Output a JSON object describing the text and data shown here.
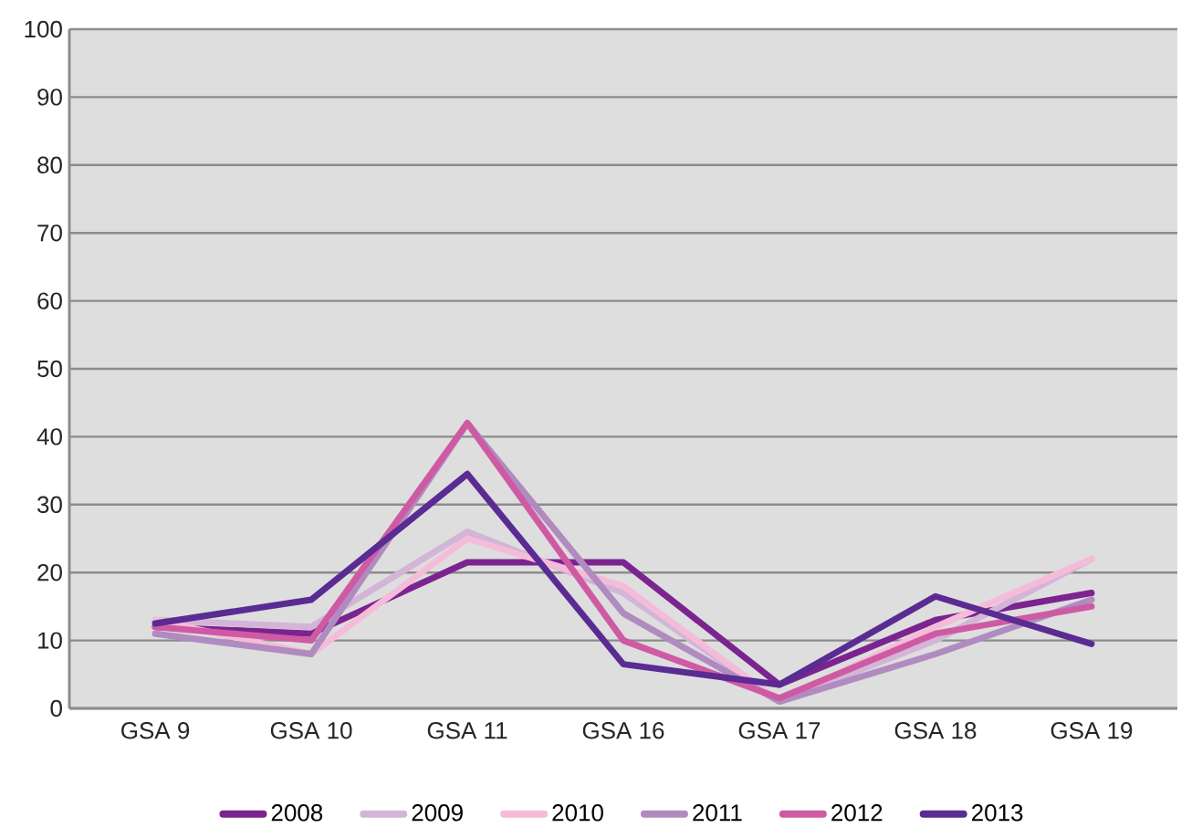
{
  "chart_data": {
    "type": "line",
    "categories": [
      "GSA 9",
      "GSA 10",
      "GSA 11",
      "GSA 16",
      "GSA 17",
      "GSA 18",
      "GSA 19"
    ],
    "series": [
      {
        "name": "2008",
        "color": "#7b2490",
        "values": [
          12,
          11,
          21.5,
          21.5,
          3.5,
          13,
          17
        ]
      },
      {
        "name": "2009",
        "color": "#d3b5d8",
        "values": [
          13,
          12,
          26,
          17,
          1,
          10,
          22
        ]
      },
      {
        "name": "2010",
        "color": "#f5bcd9",
        "values": [
          13,
          8,
          25,
          18,
          1,
          12,
          22
        ]
      },
      {
        "name": "2011",
        "color": "#b08bc0",
        "values": [
          11,
          8,
          42,
          14,
          1,
          8,
          16
        ]
      },
      {
        "name": "2012",
        "color": "#cf5aa4",
        "values": [
          12,
          10,
          42,
          10,
          1.5,
          11,
          15
        ]
      },
      {
        "name": "2013",
        "color": "#5a2b92",
        "values": [
          12.5,
          16,
          34.5,
          6.5,
          3.5,
          16.5,
          9.5
        ]
      }
    ],
    "ylim": [
      0,
      100
    ],
    "yticks": [
      0,
      10,
      20,
      30,
      40,
      50,
      60,
      70,
      80,
      90,
      100
    ],
    "grid": "y",
    "legend": "bottom",
    "marker": "none",
    "line_style": "solid"
  }
}
